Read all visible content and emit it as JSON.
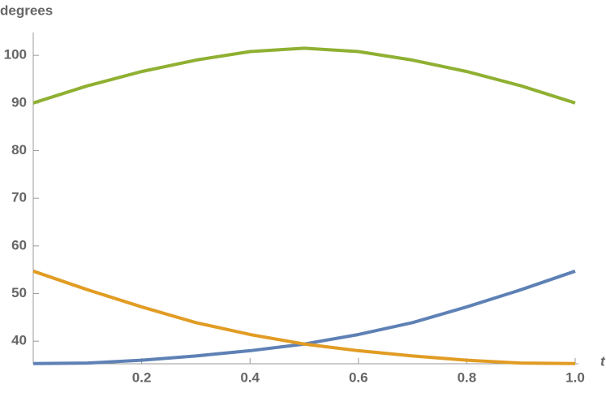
{
  "chart_data": {
    "type": "line",
    "y_label": "degrees",
    "x_label": "t",
    "x": [
      0,
      0.1,
      0.2,
      0.3,
      0.4,
      0.5,
      0.6,
      0.7,
      0.8,
      0.9,
      1.0
    ],
    "series": [
      {
        "name": "blue",
        "color": "#5e81b5",
        "values": [
          35.3,
          35.4,
          36.0,
          36.9,
          38.0,
          39.4,
          41.4,
          43.9,
          47.2,
          50.8,
          54.7
        ]
      },
      {
        "name": "orange",
        "color": "#e19c24",
        "values": [
          54.7,
          50.8,
          47.2,
          43.9,
          41.4,
          39.4,
          38.0,
          36.9,
          36.0,
          35.4,
          35.3
        ]
      },
      {
        "name": "green",
        "color": "#8fb032",
        "values": [
          90,
          93.6,
          96.6,
          99.0,
          100.8,
          101.5,
          100.8,
          99.0,
          96.6,
          93.6,
          90
        ]
      }
    ],
    "xlim": [
      0,
      1.0
    ],
    "ylim": [
      35.26,
      104.8
    ],
    "xticks": [
      0.2,
      0.4,
      0.6,
      0.8,
      {
        "value": 1,
        "label": "1.0"
      }
    ],
    "yticks": [
      40,
      50,
      60,
      70,
      80,
      90,
      100
    ]
  }
}
